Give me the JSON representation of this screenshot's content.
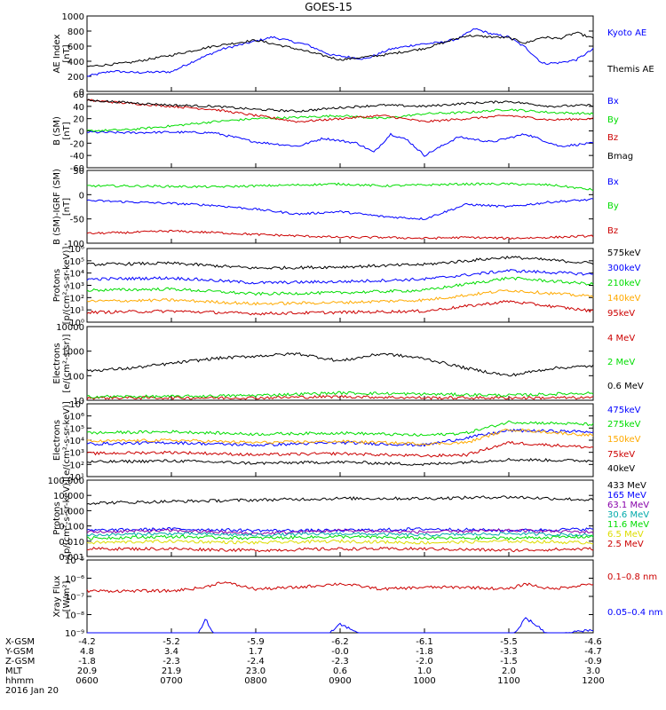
{
  "title": "GOES-15",
  "colors": {
    "black": "#000000",
    "blue": "#0000ff",
    "green": "#00dd00",
    "red": "#cc0000",
    "orange": "#ffaa00",
    "teal": "#00aaaa",
    "purple": "#8800aa",
    "yellow": "#dddd00"
  },
  "time_axis": {
    "ticks": [
      "0600",
      "0700",
      "0800",
      "0900",
      "1000",
      "1100",
      "1200"
    ],
    "row_labels": [
      "X-GSM",
      "Y-GSM",
      "Z-GSM",
      "MLT",
      "hhmm",
      "2016 Jan 20"
    ],
    "rows": {
      "xgsm": [
        "-4.2",
        "-5.2",
        "-5.9",
        "-6.2",
        "-6.1",
        "-5.5",
        "-4.6"
      ],
      "ygsm": [
        "4.8",
        "3.4",
        "1.7",
        "-0.0",
        "-1.8",
        "-3.3",
        "-4.7"
      ],
      "zgsm": [
        "-1.8",
        "-2.3",
        "-2.4",
        "-2.3",
        "-2.0",
        "-1.5",
        "-0.9"
      ],
      "mlt": [
        "20.9",
        "21.9",
        "23.0",
        "0.6",
        "1.0",
        "2.0",
        "3.0"
      ]
    }
  },
  "chart_data": [
    {
      "type": "line",
      "panel": "ae",
      "ylabel": "AE Index\n[nT]",
      "ylim": [
        0,
        1000
      ],
      "scale": "linear",
      "yticks": [
        "0",
        "200",
        "400",
        "600",
        "800",
        "1000"
      ],
      "xlim": [
        "0600",
        "1200"
      ],
      "series": [
        {
          "name": "Kyoto AE",
          "color": "blue",
          "x": [
            0,
            0.3,
            0.55,
            1,
            1.3,
            1.6,
            1.9,
            2.2,
            2.6,
            2.9,
            3.3,
            3.6,
            3.9,
            4.2,
            4.4,
            4.6,
            4.8,
            5.0,
            5.2,
            5.4,
            5.6,
            5.8,
            6.0
          ],
          "y": [
            200,
            270,
            250,
            260,
            420,
            560,
            640,
            720,
            620,
            480,
            430,
            560,
            620,
            650,
            700,
            830,
            760,
            720,
            580,
            370,
            380,
            420,
            560
          ]
        },
        {
          "name": "Themis AE",
          "color": "black",
          "x": [
            0,
            0.5,
            1,
            1.5,
            2,
            2.5,
            3,
            3.5,
            4,
            4.5,
            5,
            5.2,
            5.4,
            5.6,
            5.8,
            6.0
          ],
          "y": [
            330,
            380,
            480,
            600,
            680,
            560,
            420,
            480,
            570,
            740,
            710,
            640,
            720,
            700,
            780,
            700
          ]
        }
      ]
    },
    {
      "type": "line",
      "panel": "b_sm",
      "ylabel": "B (SM)\n[nT]",
      "ylim": [
        -60,
        60
      ],
      "scale": "linear",
      "yticks": [
        "-60",
        "-40",
        "-20",
        "0",
        "20",
        "40",
        "60"
      ],
      "xlim": [
        "0600",
        "1200"
      ],
      "series": [
        {
          "name": "Bx",
          "color": "blue",
          "x": [
            0,
            0.5,
            1,
            1.5,
            2,
            2.5,
            2.8,
            3.2,
            3.4,
            3.6,
            3.8,
            4.0,
            4.4,
            4.8,
            5.2,
            5.6,
            6.0
          ],
          "y": [
            -2,
            -3,
            -2,
            -3,
            -18,
            -25,
            -12,
            -20,
            -35,
            -5,
            -15,
            -40,
            -10,
            -18,
            -5,
            -25,
            -20
          ]
        },
        {
          "name": "By",
          "color": "green",
          "x": [
            0,
            0.5,
            1,
            1.5,
            2,
            2.5,
            3,
            3.5,
            4,
            4.5,
            5,
            5.5,
            6.0
          ],
          "y": [
            0,
            2,
            8,
            15,
            20,
            22,
            25,
            20,
            28,
            30,
            35,
            30,
            28
          ]
        },
        {
          "name": "Bz",
          "color": "red",
          "x": [
            0,
            0.5,
            1,
            1.5,
            2,
            2.5,
            3,
            3.5,
            4,
            4.5,
            5,
            5.5,
            6.0
          ],
          "y": [
            50,
            45,
            40,
            35,
            25,
            15,
            20,
            25,
            15,
            20,
            25,
            18,
            20
          ]
        },
        {
          "name": "Bmag",
          "color": "black",
          "x": [
            0,
            0.5,
            1,
            1.5,
            2,
            2.5,
            3,
            3.5,
            4,
            4.5,
            5,
            5.5,
            6.0
          ],
          "y": [
            50,
            46,
            42,
            40,
            35,
            32,
            38,
            42,
            40,
            45,
            48,
            40,
            42
          ]
        }
      ]
    },
    {
      "type": "line",
      "panel": "b_igrf",
      "ylabel": "B (SM)-IGRF (SM)\n[nT]",
      "ylim": [
        -100,
        50
      ],
      "scale": "linear",
      "yticks": [
        "-100",
        "-50",
        "0",
        "50"
      ],
      "xlim": [
        "0600",
        "1200"
      ],
      "series": [
        {
          "name": "Bx",
          "color": "blue",
          "x": [
            0,
            0.5,
            1,
            1.5,
            2,
            2.5,
            3,
            3.5,
            4,
            4.5,
            5,
            5.5,
            6.0
          ],
          "y": [
            -12,
            -15,
            -18,
            -22,
            -30,
            -40,
            -35,
            -45,
            -50,
            -20,
            -25,
            -15,
            -10
          ]
        },
        {
          "name": "By",
          "color": "green",
          "x": [
            0,
            0.5,
            1,
            1.5,
            2,
            2.5,
            3,
            3.5,
            4,
            4.5,
            5,
            5.5,
            6.0
          ],
          "y": [
            18,
            18,
            17,
            16,
            18,
            20,
            22,
            18,
            20,
            22,
            22,
            20,
            10
          ]
        },
        {
          "name": "Bz",
          "color": "red",
          "x": [
            0,
            0.5,
            1,
            1.5,
            2,
            2.5,
            3,
            3.5,
            4,
            4.5,
            5,
            5.5,
            6.0
          ],
          "y": [
            -80,
            -78,
            -75,
            -78,
            -82,
            -85,
            -88,
            -88,
            -90,
            -88,
            -90,
            -88,
            -85
          ]
        }
      ]
    },
    {
      "type": "line",
      "panel": "protons_low",
      "ylabel": "Protons\n[p/(cm²-s-sr-keV)]",
      "scale": "log",
      "ylim": [
        0,
        6
      ],
      "yticks": [
        "10⁰",
        "10¹",
        "10²",
        "10³",
        "10⁴",
        "10⁵",
        "10⁶"
      ],
      "xlim": [
        "0600",
        "1200"
      ],
      "series": [
        {
          "name": "575keV",
          "color": "black",
          "x": [
            0,
            1,
            2,
            3,
            4,
            5,
            6
          ],
          "y": [
            4.7,
            4.8,
            4.4,
            4.5,
            4.7,
            5.3,
            4.8
          ]
        },
        {
          "name": "300keV",
          "color": "blue",
          "x": [
            0,
            1,
            2,
            3,
            4,
            5,
            6
          ],
          "y": [
            3.5,
            3.6,
            3.2,
            3.3,
            3.5,
            4.2,
            3.9
          ]
        },
        {
          "name": "210keV",
          "color": "green",
          "x": [
            0,
            1,
            2,
            3,
            4,
            5,
            6
          ],
          "y": [
            2.6,
            2.7,
            2.3,
            2.4,
            2.6,
            3.6,
            3.1
          ]
        },
        {
          "name": "140keV",
          "color": "orange",
          "x": [
            0,
            1,
            2,
            3,
            4,
            5,
            6
          ],
          "y": [
            1.7,
            1.8,
            1.5,
            1.6,
            1.8,
            2.6,
            2.1
          ]
        },
        {
          "name": "95keV",
          "color": "red",
          "x": [
            0,
            1,
            2,
            3,
            4,
            5,
            6
          ],
          "y": [
            0.8,
            0.9,
            0.7,
            0.8,
            0.9,
            1.7,
            0.9
          ]
        }
      ]
    },
    {
      "type": "line",
      "panel": "electrons_mev",
      "ylabel": "Electrons\n[e/(cm²-s-sr)]",
      "scale": "log",
      "ylim": [
        1,
        4
      ],
      "yticks": [
        "10",
        "100",
        "1000",
        "10000"
      ],
      "xlim": [
        "0600",
        "1200"
      ],
      "series": [
        {
          "name": "4 MeV",
          "color": "red",
          "x": [
            0,
            1,
            2,
            3,
            4,
            5,
            6
          ],
          "y": [
            1.1,
            1.1,
            1.1,
            1.15,
            1.1,
            1.1,
            1.1
          ]
        },
        {
          "name": "2 MeV",
          "color": "green",
          "x": [
            0,
            1,
            2,
            3,
            4,
            5,
            6
          ],
          "y": [
            1.15,
            1.15,
            1.2,
            1.3,
            1.25,
            1.2,
            1.3
          ]
        },
        {
          "name": "0.6 MeV",
          "color": "black",
          "x": [
            0,
            0.5,
            1,
            1.5,
            2,
            2.5,
            3,
            3.5,
            4,
            4.5,
            5,
            5.5,
            6.0
          ],
          "y": [
            2.2,
            2.3,
            2.5,
            2.7,
            2.8,
            2.9,
            2.6,
            2.9,
            2.7,
            2.3,
            2.0,
            2.3,
            2.4
          ]
        }
      ]
    },
    {
      "type": "line",
      "panel": "electrons_kev",
      "ylabel": "Electrons\n[e/(cm²-s-sr-keV)]",
      "scale": "log",
      "ylim": [
        1,
        7
      ],
      "yticks": [
        "10¹",
        "10²",
        "10³",
        "10⁴",
        "10⁵",
        "10⁶",
        "10⁷"
      ],
      "xlim": [
        "0600",
        "1200"
      ],
      "series": [
        {
          "name": "475keV",
          "color": "blue",
          "x": [
            0,
            1,
            2,
            3,
            4,
            5,
            6
          ],
          "y": [
            3.7,
            3.8,
            3.6,
            3.8,
            3.6,
            4.8,
            4.7
          ]
        },
        {
          "name": "275keV",
          "color": "green",
          "x": [
            0,
            1,
            2,
            3,
            4,
            4.5,
            5,
            6
          ],
          "y": [
            4.6,
            4.7,
            4.5,
            4.6,
            4.4,
            4.6,
            5.5,
            5.3
          ]
        },
        {
          "name": "150keV",
          "color": "orange",
          "x": [
            0,
            1,
            2,
            3,
            4,
            4.5,
            5,
            6
          ],
          "y": [
            3.9,
            4.0,
            3.8,
            3.9,
            3.7,
            3.8,
            4.9,
            4.4
          ]
        },
        {
          "name": "75keV",
          "color": "red",
          "x": [
            0,
            1,
            2,
            3,
            4,
            4.5,
            5,
            6
          ],
          "y": [
            2.9,
            3.0,
            2.8,
            2.9,
            2.7,
            2.8,
            3.8,
            3.4
          ]
        },
        {
          "name": "40keV",
          "color": "black",
          "x": [
            0,
            1,
            2,
            3,
            4,
            5,
            6
          ],
          "y": [
            2.2,
            2.3,
            2.1,
            2.2,
            2.0,
            2.4,
            2.3
          ]
        }
      ]
    },
    {
      "type": "line",
      "panel": "protons_high",
      "ylabel": "Protons\n[p/(cm²-s-sr-keV)]",
      "scale": "log",
      "ylim": [
        -3,
        2
      ],
      "yticks": [
        "0.001",
        "0.010",
        "0.100",
        "1.000",
        "10.000",
        "100.000"
      ],
      "xlim": [
        "0600",
        "1200"
      ],
      "series": [
        {
          "name": "433 MeV",
          "color": "black",
          "x": [
            0,
            1,
            2,
            3,
            4,
            5,
            6
          ],
          "y": [
            0.5,
            0.6,
            0.7,
            0.8,
            0.8,
            0.9,
            0.7
          ]
        },
        {
          "name": "165 MeV",
          "color": "blue",
          "x": [
            0,
            1,
            2,
            3,
            4,
            5,
            6
          ],
          "y": [
            -1.3,
            -1.2,
            -1.3,
            -1.3,
            -1.2,
            -1.3,
            -1.2
          ]
        },
        {
          "name": "63.1 MeV",
          "color": "purple",
          "x": [
            0,
            1,
            2,
            3,
            4,
            5,
            6
          ],
          "y": [
            -1.4,
            -1.3,
            -1.5,
            -1.3,
            -1.4,
            -1.3,
            -1.4
          ]
        },
        {
          "name": "30.6 MeV",
          "color": "teal",
          "x": [
            0,
            1,
            2,
            3,
            4,
            5,
            6
          ],
          "y": [
            -1.6,
            -1.5,
            -1.6,
            -1.5,
            -1.6,
            -1.5,
            -1.6
          ]
        },
        {
          "name": "11.6 MeV",
          "color": "green",
          "x": [
            0,
            1,
            2,
            3,
            4,
            5,
            6
          ],
          "y": [
            -1.8,
            -1.7,
            -1.8,
            -1.7,
            -1.8,
            -1.8,
            -1.7
          ]
        },
        {
          "name": "6.5 MeV",
          "color": "yellow",
          "x": [
            0,
            1,
            2,
            3,
            4,
            5,
            6
          ],
          "y": [
            -2.1,
            -2.0,
            -2.1,
            -2.0,
            -2.1,
            -2.0,
            -2.1
          ]
        },
        {
          "name": "2.5 MeV",
          "color": "red",
          "x": [
            0,
            1,
            2,
            3,
            4,
            5,
            6
          ],
          "y": [
            -2.5,
            -2.5,
            -2.6,
            -2.5,
            -2.5,
            -2.6,
            -2.5
          ]
        }
      ]
    },
    {
      "type": "line",
      "panel": "xray",
      "ylabel": "Xray Flux\n[W/m²]",
      "scale": "log",
      "ylim": [
        -9,
        -5
      ],
      "yticks": [
        "10⁻⁹",
        "10⁻⁸",
        "10⁻⁷",
        "10⁻⁶",
        "10⁻⁵"
      ],
      "xlim": [
        "0600",
        "1200"
      ],
      "series": [
        {
          "name": "0.1–0.8 nm",
          "color": "red",
          "x": [
            0,
            0.5,
            1,
            1.4,
            1.6,
            2,
            2.5,
            3,
            3.5,
            4,
            4.5,
            5,
            5.2,
            5.5,
            6.0
          ],
          "y": [
            -6.7,
            -6.7,
            -6.7,
            -6.5,
            -6.2,
            -6.6,
            -6.5,
            -6.3,
            -6.6,
            -6.5,
            -6.5,
            -6.6,
            -6.3,
            -6.6,
            -6.3
          ]
        },
        {
          "name": "0.05–0.4 nm",
          "color": "blue",
          "x": [
            0,
            0.5,
            1,
            1.3,
            1.4,
            1.5,
            1.7,
            2,
            2.5,
            2.8,
            3,
            3.2,
            3.5,
            4,
            4.5,
            5,
            5.2,
            5.3,
            5.5,
            6.0
          ],
          "y": [
            -9.5,
            -9.5,
            -9.5,
            -9.3,
            -8.2,
            -9.0,
            -9.5,
            -9.5,
            -9.5,
            -9.3,
            -8.5,
            -9.0,
            -9.3,
            -9.5,
            -9.5,
            -9.5,
            -8.2,
            -8.5,
            -9.2,
            -8.8
          ]
        }
      ]
    }
  ]
}
